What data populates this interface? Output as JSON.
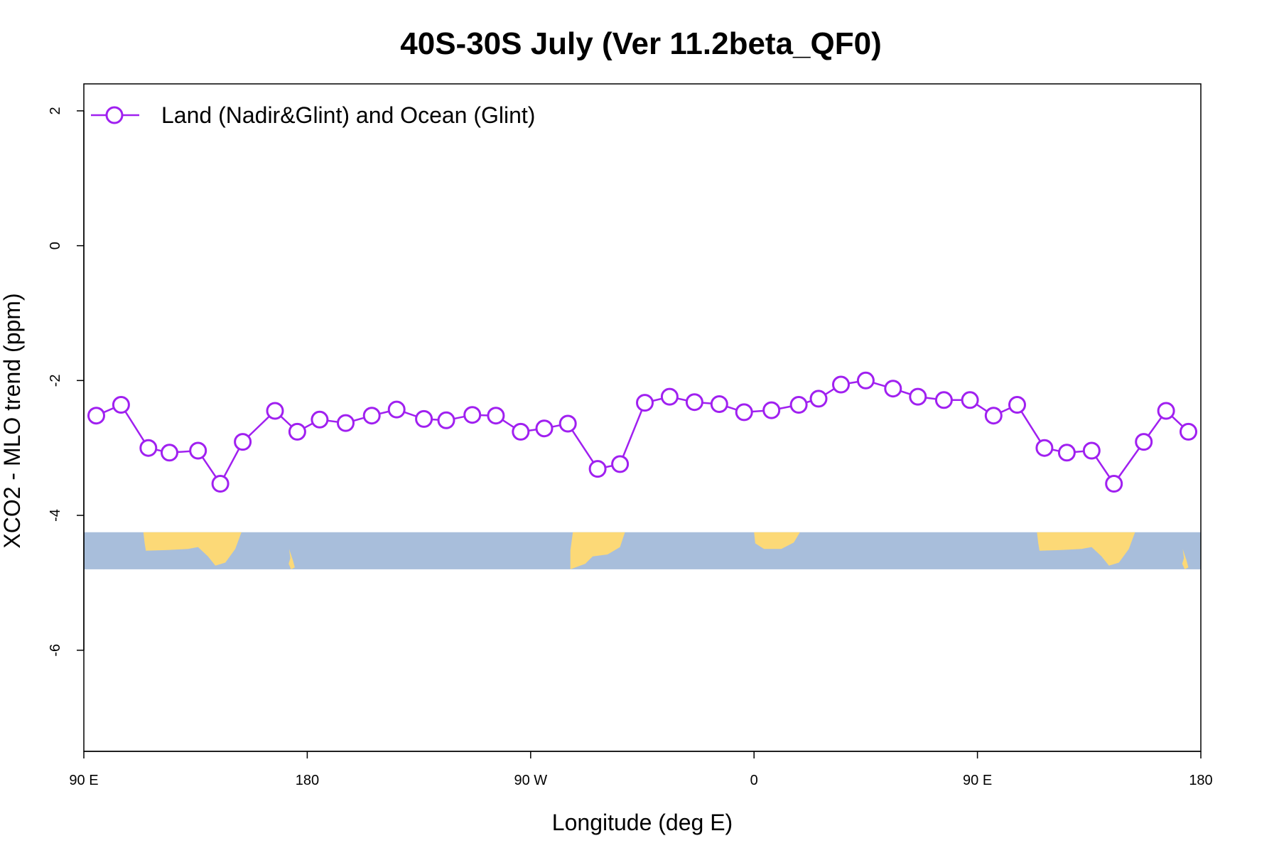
{
  "chart_data": {
    "type": "line",
    "title": "40S-30S July (Ver 11.2beta_QF0)",
    "xlabel": "Longitude (deg E)",
    "ylabel": "XCO2 - MLO trend (ppm)",
    "xlim": [
      90,
      540
    ],
    "ylim": [
      -7.5,
      2.4
    ],
    "x_ticks": [
      {
        "value": 90,
        "label": "90 E"
      },
      {
        "value": 180,
        "label": "180"
      },
      {
        "value": 270,
        "label": "90 W"
      },
      {
        "value": 360,
        "label": "0"
      },
      {
        "value": 450,
        "label": "90 E"
      },
      {
        "value": 540,
        "label": "180"
      }
    ],
    "y_ticks": [
      {
        "value": 2,
        "label": "2"
      },
      {
        "value": 0,
        "label": "0"
      },
      {
        "value": -2,
        "label": "-2"
      },
      {
        "value": -4,
        "label": "-4"
      },
      {
        "value": -6,
        "label": "-6"
      }
    ],
    "legend": {
      "position": "top-left"
    },
    "map_strip": {
      "y_range": [
        -4.25,
        -4.8
      ],
      "ocean_color": "#a8bedb",
      "land_color": "#fcd977"
    },
    "series": [
      {
        "name": "Land (Nadir&Glint) and Ocean (Glint)",
        "color": "#a020f0",
        "marker": "open-circle",
        "x": [
          95,
          105,
          116,
          124.5,
          136,
          145,
          154,
          167,
          176,
          185,
          195.5,
          206,
          216,
          227,
          236,
          246.5,
          256,
          266,
          275.5,
          285,
          297,
          306,
          316,
          326,
          336,
          346,
          356,
          367,
          378,
          386,
          395,
          405,
          416,
          426,
          436.5,
          447,
          456.5,
          466,
          477,
          486,
          496,
          505,
          517,
          526,
          535
        ],
        "y": [
          -2.52,
          -2.36,
          -3.0,
          -3.07,
          -3.04,
          -3.53,
          -2.91,
          -2.45,
          -2.76,
          -2.58,
          -2.63,
          -2.52,
          -2.43,
          -2.57,
          -2.59,
          -2.51,
          -2.52,
          -2.76,
          -2.71,
          -2.64,
          -3.31,
          -3.24,
          -2.33,
          -2.24,
          -2.32,
          -2.35,
          -2.47,
          -2.44,
          -2.36,
          -2.27,
          -2.06,
          -2.0,
          -2.12,
          -2.24,
          -2.29,
          -2.29,
          -2.52,
          -2.36,
          -3.0,
          -3.07,
          -3.04,
          -3.53,
          -2.91,
          -2.45,
          -2.76
        ]
      }
    ]
  }
}
